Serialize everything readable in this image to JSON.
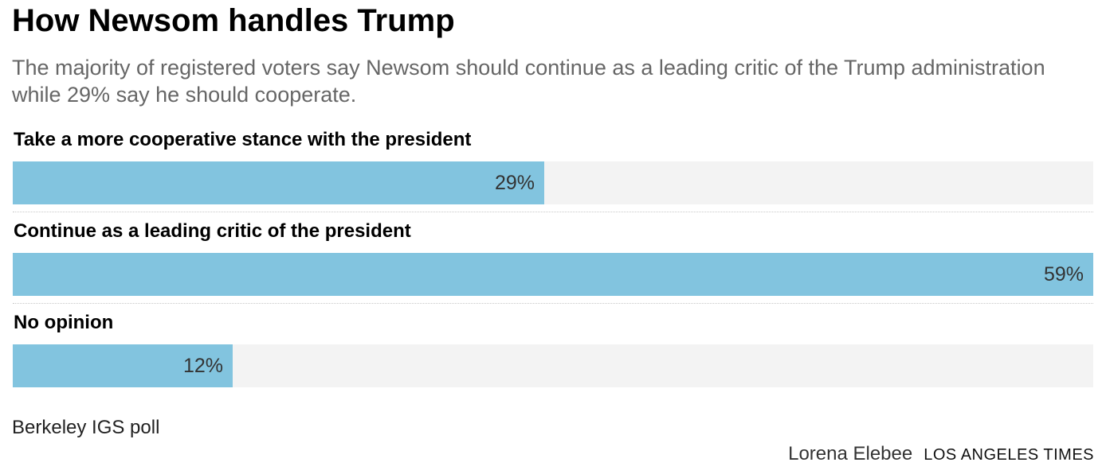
{
  "header": {
    "title": "How Newsom handles Trump",
    "subtitle": "The majority of registered voters say Newsom should continue as a leading critic of the Trump administration while 29% say he should cooperate."
  },
  "chart_data": {
    "type": "bar",
    "orientation": "horizontal",
    "title": "How Newsom handles Trump",
    "categories": [
      "Take a more cooperative stance with the president",
      "Continue as a leading critic of the president",
      "No opinion"
    ],
    "values": [
      29,
      59,
      12
    ],
    "value_labels": [
      "29%",
      "59%",
      "12%"
    ],
    "unit": "%",
    "xlim": [
      0,
      59
    ],
    "xlabel": "",
    "ylabel": "",
    "grid": false,
    "bar_color": "#82c4df",
    "track_color": "#f3f3f3"
  },
  "footer": {
    "source": "Berkeley IGS poll",
    "author": "Lorena Elebee",
    "outlet": "LOS ANGELES TIMES"
  }
}
